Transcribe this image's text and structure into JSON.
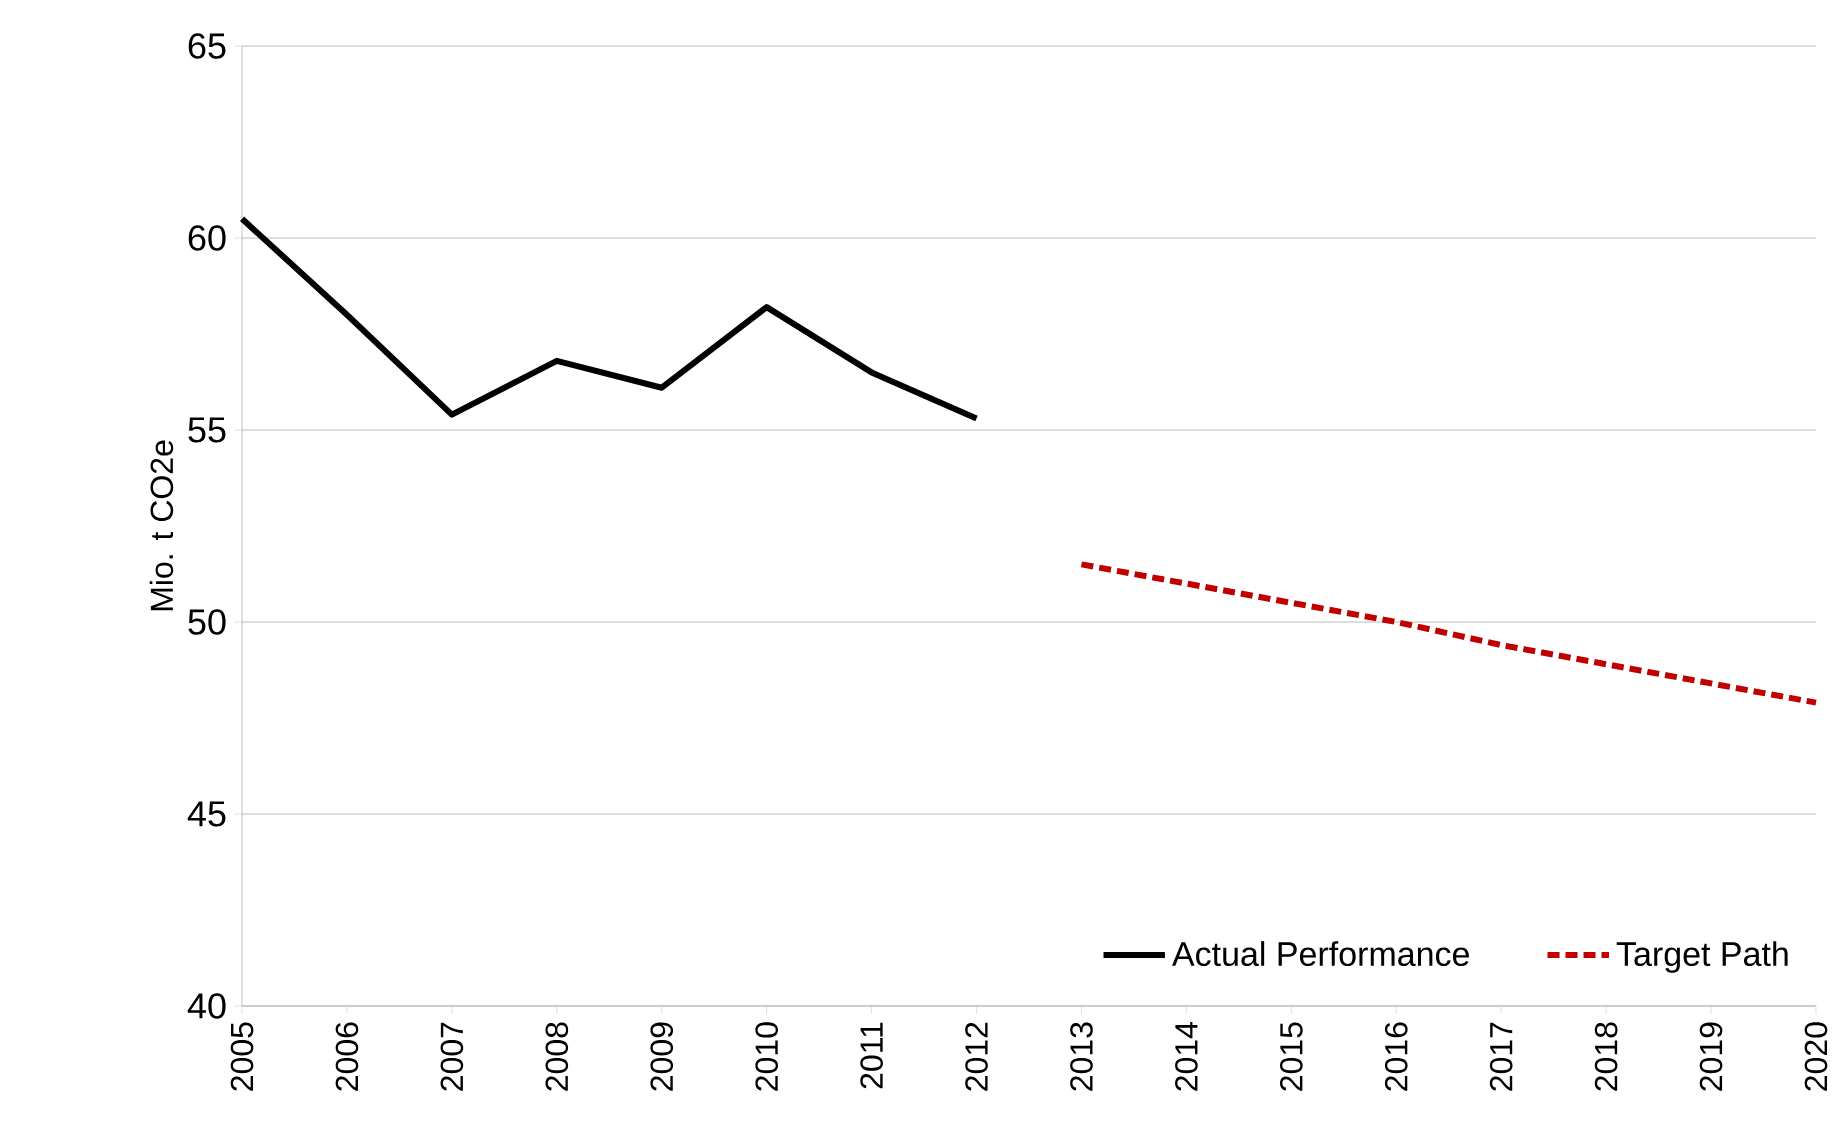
{
  "chart_data": {
    "type": "line",
    "ylabel": "Mio. t CO2e",
    "xlim": [
      2005,
      2020
    ],
    "xticks": [
      2005,
      2006,
      2007,
      2008,
      2009,
      2010,
      2011,
      2012,
      2013,
      2014,
      2015,
      2016,
      2017,
      2018,
      2019,
      2020
    ],
    "ylim": [
      40,
      65
    ],
    "yticks": [
      40,
      45,
      50,
      55,
      60,
      65
    ],
    "grid": "y",
    "legend": "bottom right",
    "marker": "none",
    "series": [
      {
        "name": "Actual Performance",
        "color": "#000000",
        "line_style": "solid",
        "x": [
          2005,
          2006,
          2007,
          2008,
          2009,
          2010,
          2011,
          2012
        ],
        "values": [
          60.5,
          58.0,
          55.4,
          56.8,
          56.1,
          58.2,
          56.5,
          55.3
        ]
      },
      {
        "name": "Target Path",
        "color": "#c00000",
        "line_style": "dashed",
        "x": [
          2013,
          2014,
          2015,
          2016,
          2017,
          2018,
          2019,
          2020
        ],
        "values": [
          51.5,
          51.0,
          50.5,
          50.0,
          49.4,
          48.9,
          48.4,
          47.9
        ]
      }
    ]
  }
}
